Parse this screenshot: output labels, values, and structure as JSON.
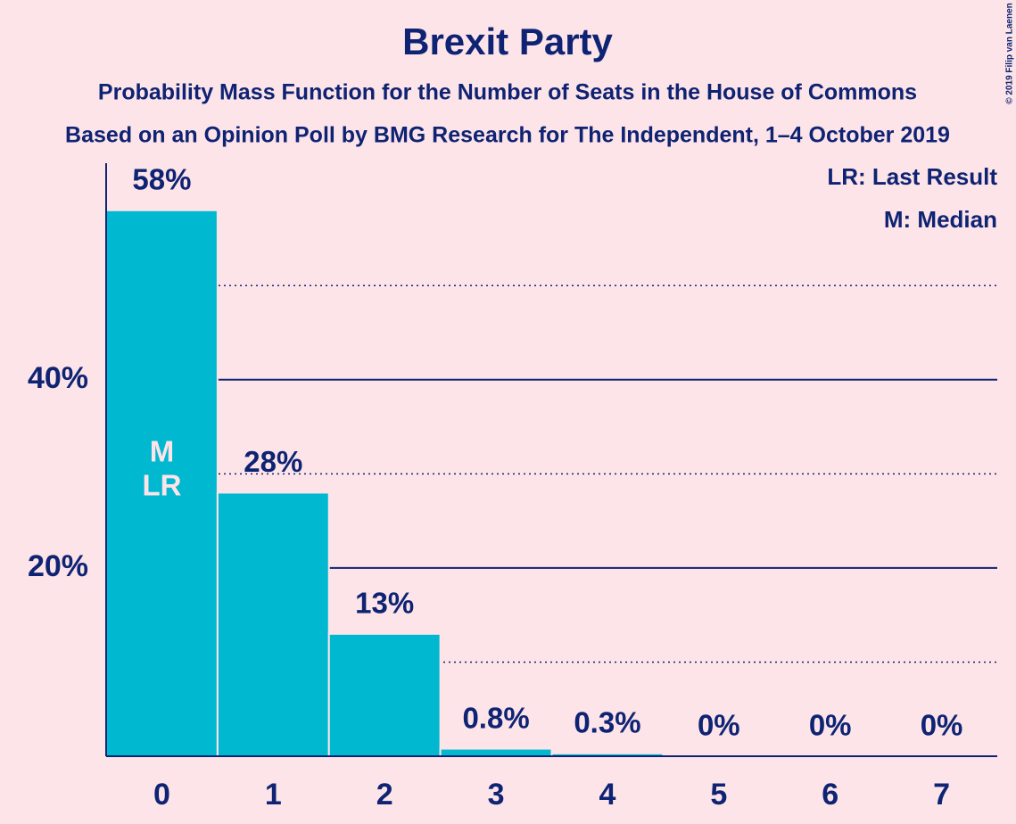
{
  "chart_data": {
    "type": "bar",
    "title": "Brexit Party",
    "subtitle": "Probability Mass Function for the Number of Seats in the House of Commons",
    "subtitle2": "Based on an Opinion Poll by BMG Research for The Independent, 1–4 October 2019",
    "categories": [
      0,
      1,
      2,
      3,
      4,
      5,
      6,
      7
    ],
    "values": [
      58,
      28,
      13,
      0.8,
      0.3,
      0,
      0,
      0
    ],
    "value_labels": [
      "58%",
      "28%",
      "13%",
      "0.8%",
      "0.3%",
      "0%",
      "0%",
      "0%"
    ],
    "color": "#00b8d0",
    "ylim": [
      0,
      63
    ],
    "yticks": [
      {
        "value": 20,
        "label": "20%"
      },
      {
        "value": 40,
        "label": "40%"
      }
    ],
    "minor_yticks": [
      10,
      30,
      50
    ],
    "grid": true,
    "median": {
      "index": 0,
      "label": "M"
    },
    "last_result": {
      "index": 0,
      "label": "LR"
    },
    "legend": [
      "LR: Last Result",
      "M: Median"
    ],
    "copyright": "© 2019 Filip van Laenen"
  }
}
